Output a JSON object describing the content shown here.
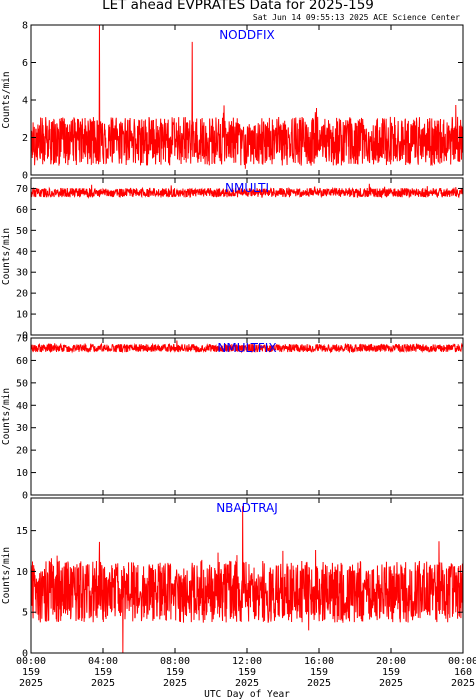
{
  "title": "LET ahead EVPRATES Data for 2025-159",
  "timestamp": "Sat Jun 14 09:55:13 2025 ACE Science Center",
  "xlabel": "UTC Day of Year",
  "colors": {
    "data": "#ff0000",
    "label": "#0000ff",
    "axes": "#000000"
  },
  "chart_data": [
    {
      "type": "line",
      "series": [
        {
          "name": "NODDFIX",
          "style": "noise",
          "baseline": 1.8,
          "spread": 1.3,
          "min": 0,
          "max": 8,
          "spikes": [
            [
              3.8,
              8
            ],
            [
              8.95,
              7.1
            ]
          ]
        }
      ],
      "ylabel": "Counts/min",
      "ylim": [
        0,
        8
      ],
      "yticks": [
        0,
        2,
        4,
        6,
        8
      ],
      "xlim": [
        0,
        24
      ]
    },
    {
      "type": "line",
      "series": [
        {
          "name": "NMULTI",
          "style": "noise",
          "baseline": 68,
          "spread": 2.2,
          "min": 64,
          "max": 73,
          "spikes": []
        }
      ],
      "ylabel": "Counts/min",
      "ylim": [
        0,
        75
      ],
      "yticks": [
        0,
        10,
        20,
        30,
        40,
        50,
        60,
        70
      ],
      "xlim": [
        0,
        24
      ]
    },
    {
      "type": "line",
      "series": [
        {
          "name": "NMULTFIX",
          "style": "noise",
          "baseline": 65.5,
          "spread": 1.8,
          "min": 62,
          "max": 70,
          "spikes": []
        }
      ],
      "ylabel": "Counts/min",
      "ylim": [
        0,
        70
      ],
      "yticks": [
        0,
        10,
        20,
        30,
        40,
        50,
        60,
        70
      ],
      "xlim": [
        0,
        24
      ]
    },
    {
      "type": "line",
      "series": [
        {
          "name": "NBADTRAJ",
          "style": "noise",
          "baseline": 7.5,
          "spread": 3.8,
          "min": 0,
          "max": 18,
          "spikes": [
            [
              5.1,
              0
            ],
            [
              11.75,
              18
            ]
          ]
        }
      ],
      "ylabel": "Counts/min",
      "ylim": [
        0,
        19
      ],
      "yticks": [
        0,
        5,
        10,
        15
      ],
      "xlim": [
        0,
        24
      ]
    }
  ],
  "xticks": [
    {
      "value": 0,
      "time": "00:00",
      "doy": "159",
      "year": "2025"
    },
    {
      "value": 4,
      "time": "04:00",
      "doy": "159",
      "year": "2025"
    },
    {
      "value": 8,
      "time": "08:00",
      "doy": "159",
      "year": "2025"
    },
    {
      "value": 12,
      "time": "12:00",
      "doy": "159",
      "year": "2025"
    },
    {
      "value": 16,
      "time": "16:00",
      "doy": "159",
      "year": "2025"
    },
    {
      "value": 20,
      "time": "20:00",
      "doy": "159",
      "year": "2025"
    },
    {
      "value": 24,
      "time": "00:00",
      "doy": "160",
      "year": "2025"
    }
  ]
}
